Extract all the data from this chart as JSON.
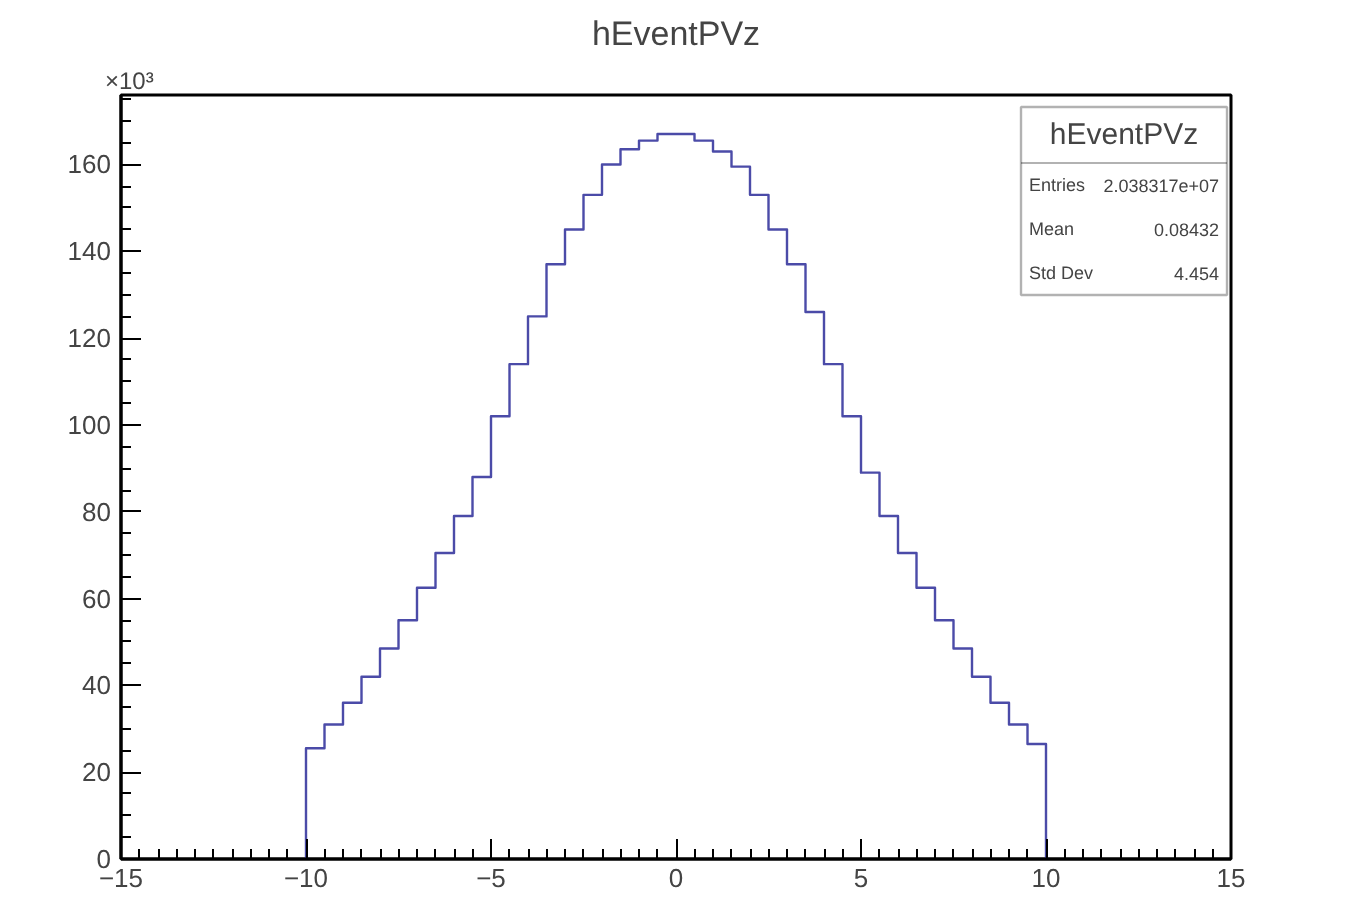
{
  "chart_data": {
    "type": "histogram",
    "title": "hEventPVz",
    "bins": [
      -10,
      -9.5,
      -9,
      -8.5,
      -8,
      -7.5,
      -7,
      -6.5,
      -6,
      -5.5,
      -5,
      -4.5,
      -4,
      -3.5,
      -3,
      -2.5,
      -2,
      -1.5,
      -1,
      -0.5,
      0,
      0.5,
      1,
      1.5,
      2,
      2.5,
      3,
      3.5,
      4,
      4.5,
      5,
      5.5,
      6,
      6.5,
      7,
      7.5,
      8,
      8.5,
      9,
      9.5,
      10
    ],
    "values": [
      25.5,
      31,
      36,
      42,
      48.5,
      55,
      62.5,
      70.5,
      79,
      88,
      102,
      114,
      125,
      137,
      145,
      153,
      160,
      163.5,
      165.5,
      167,
      167,
      165.5,
      163,
      159.5,
      153,
      145,
      137,
      126,
      114,
      102,
      89,
      79,
      70.5,
      62.5,
      55,
      48.5,
      42,
      36,
      31,
      26.5
    ],
    "color": "#4b4ba8",
    "xlim": [
      -15,
      15
    ],
    "xticks": [
      -15,
      -10,
      -5,
      0,
      5,
      10,
      15
    ],
    "ylim": [
      0,
      176
    ],
    "yticks": [
      0,
      20,
      40,
      60,
      80,
      100,
      120,
      140,
      160
    ],
    "grid": false,
    "annotations": [
      "×10³",
      "hEventPVz",
      "Entries",
      "2.038317e+07",
      "Mean",
      "0.08432",
      "Std Dev",
      "4.454"
    ]
  }
}
